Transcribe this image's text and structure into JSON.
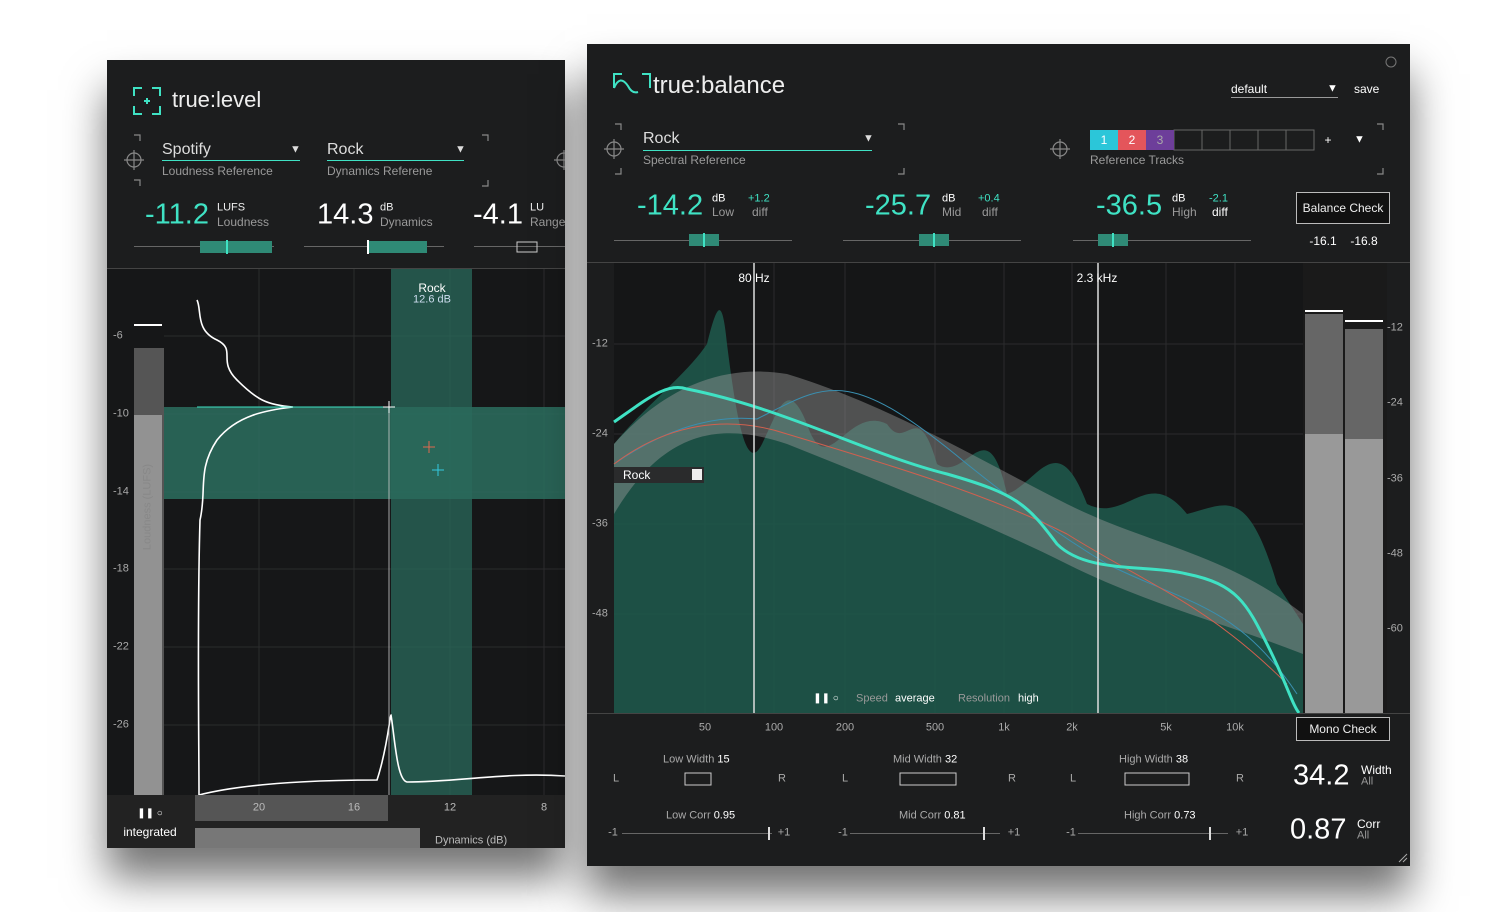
{
  "true_level": {
    "logo": "true:level",
    "selectors": [
      {
        "value": "Spotify",
        "caption": "Loudness Reference"
      },
      {
        "value": "Rock",
        "caption": "Dynamics Referene"
      }
    ],
    "meters": [
      {
        "value": "-11.2",
        "unit": "LUFS",
        "label": "Loudness"
      },
      {
        "value": "14.3",
        "unit": "dB",
        "label": "Dynamics"
      },
      {
        "value": "-4.1",
        "unit": "LU",
        "label": "Range"
      }
    ],
    "y_labels": [
      "-6",
      "-10",
      "-14",
      "-18",
      "-22",
      "-26"
    ],
    "axis_title": "Loudness (LUFS)",
    "reference_box": {
      "name": "Rock",
      "value": "12.6 dB"
    },
    "x_labels": [
      "20",
      "16",
      "12",
      "8"
    ],
    "mode": "integrated",
    "dynamics_label": "Dynamics (dB)"
  },
  "true_balance": {
    "logo": "true:balance",
    "preset": "default",
    "save": "save",
    "selector": {
      "value": "Rock",
      "caption": "Spectral Reference"
    },
    "tracks": {
      "items": [
        "1",
        "2",
        "3",
        "+"
      ],
      "caption": "Reference Tracks"
    },
    "bands": [
      {
        "value": "-14.2",
        "unit": "dB",
        "label": "Low",
        "diff": "+1.2",
        "diff_label": "diff"
      },
      {
        "value": "-25.7",
        "unit": "dB",
        "label": "Mid",
        "diff": "+0.4",
        "diff_label": "diff"
      },
      {
        "value": "-36.5",
        "unit": "dB",
        "label": "High",
        "diff": "-2.1",
        "diff_label": "diff"
      }
    ],
    "balance_check": {
      "label": "Balance Check",
      "values": [
        "-16.1",
        "-16.8"
      ]
    },
    "markers": [
      "80 Hz",
      "2.3 kHz"
    ],
    "y_labels": [
      "-12",
      "-24",
      "-36",
      "-48"
    ],
    "meter_labels": [
      "-12",
      "-24",
      "-36",
      "-48",
      "-60"
    ],
    "reference_tag": "Rock",
    "status": {
      "speed_label": "Speed",
      "speed": "average",
      "resolution_label": "Resolution",
      "resolution": "high"
    },
    "x_labels": [
      "50",
      "100",
      "200",
      "500",
      "1k",
      "2k",
      "5k",
      "10k"
    ],
    "mono_check": "Mono Check",
    "stereo": {
      "left": "L",
      "right": "R",
      "min": "-1",
      "max": "+1"
    },
    "widths": [
      {
        "label": "Low Width",
        "value": "15"
      },
      {
        "label": "Mid Width",
        "value": "32"
      },
      {
        "label": "High Width",
        "value": "38"
      }
    ],
    "corrs": [
      {
        "label": "Low Corr",
        "value": "0.95"
      },
      {
        "label": "Mid Corr",
        "value": "0.81"
      },
      {
        "label": "High Corr",
        "value": "0.73"
      }
    ],
    "totals": [
      {
        "value": "34.2",
        "label": "Width",
        "sub": "All"
      },
      {
        "value": "0.87",
        "label": "Corr",
        "sub": "All"
      }
    ]
  }
}
